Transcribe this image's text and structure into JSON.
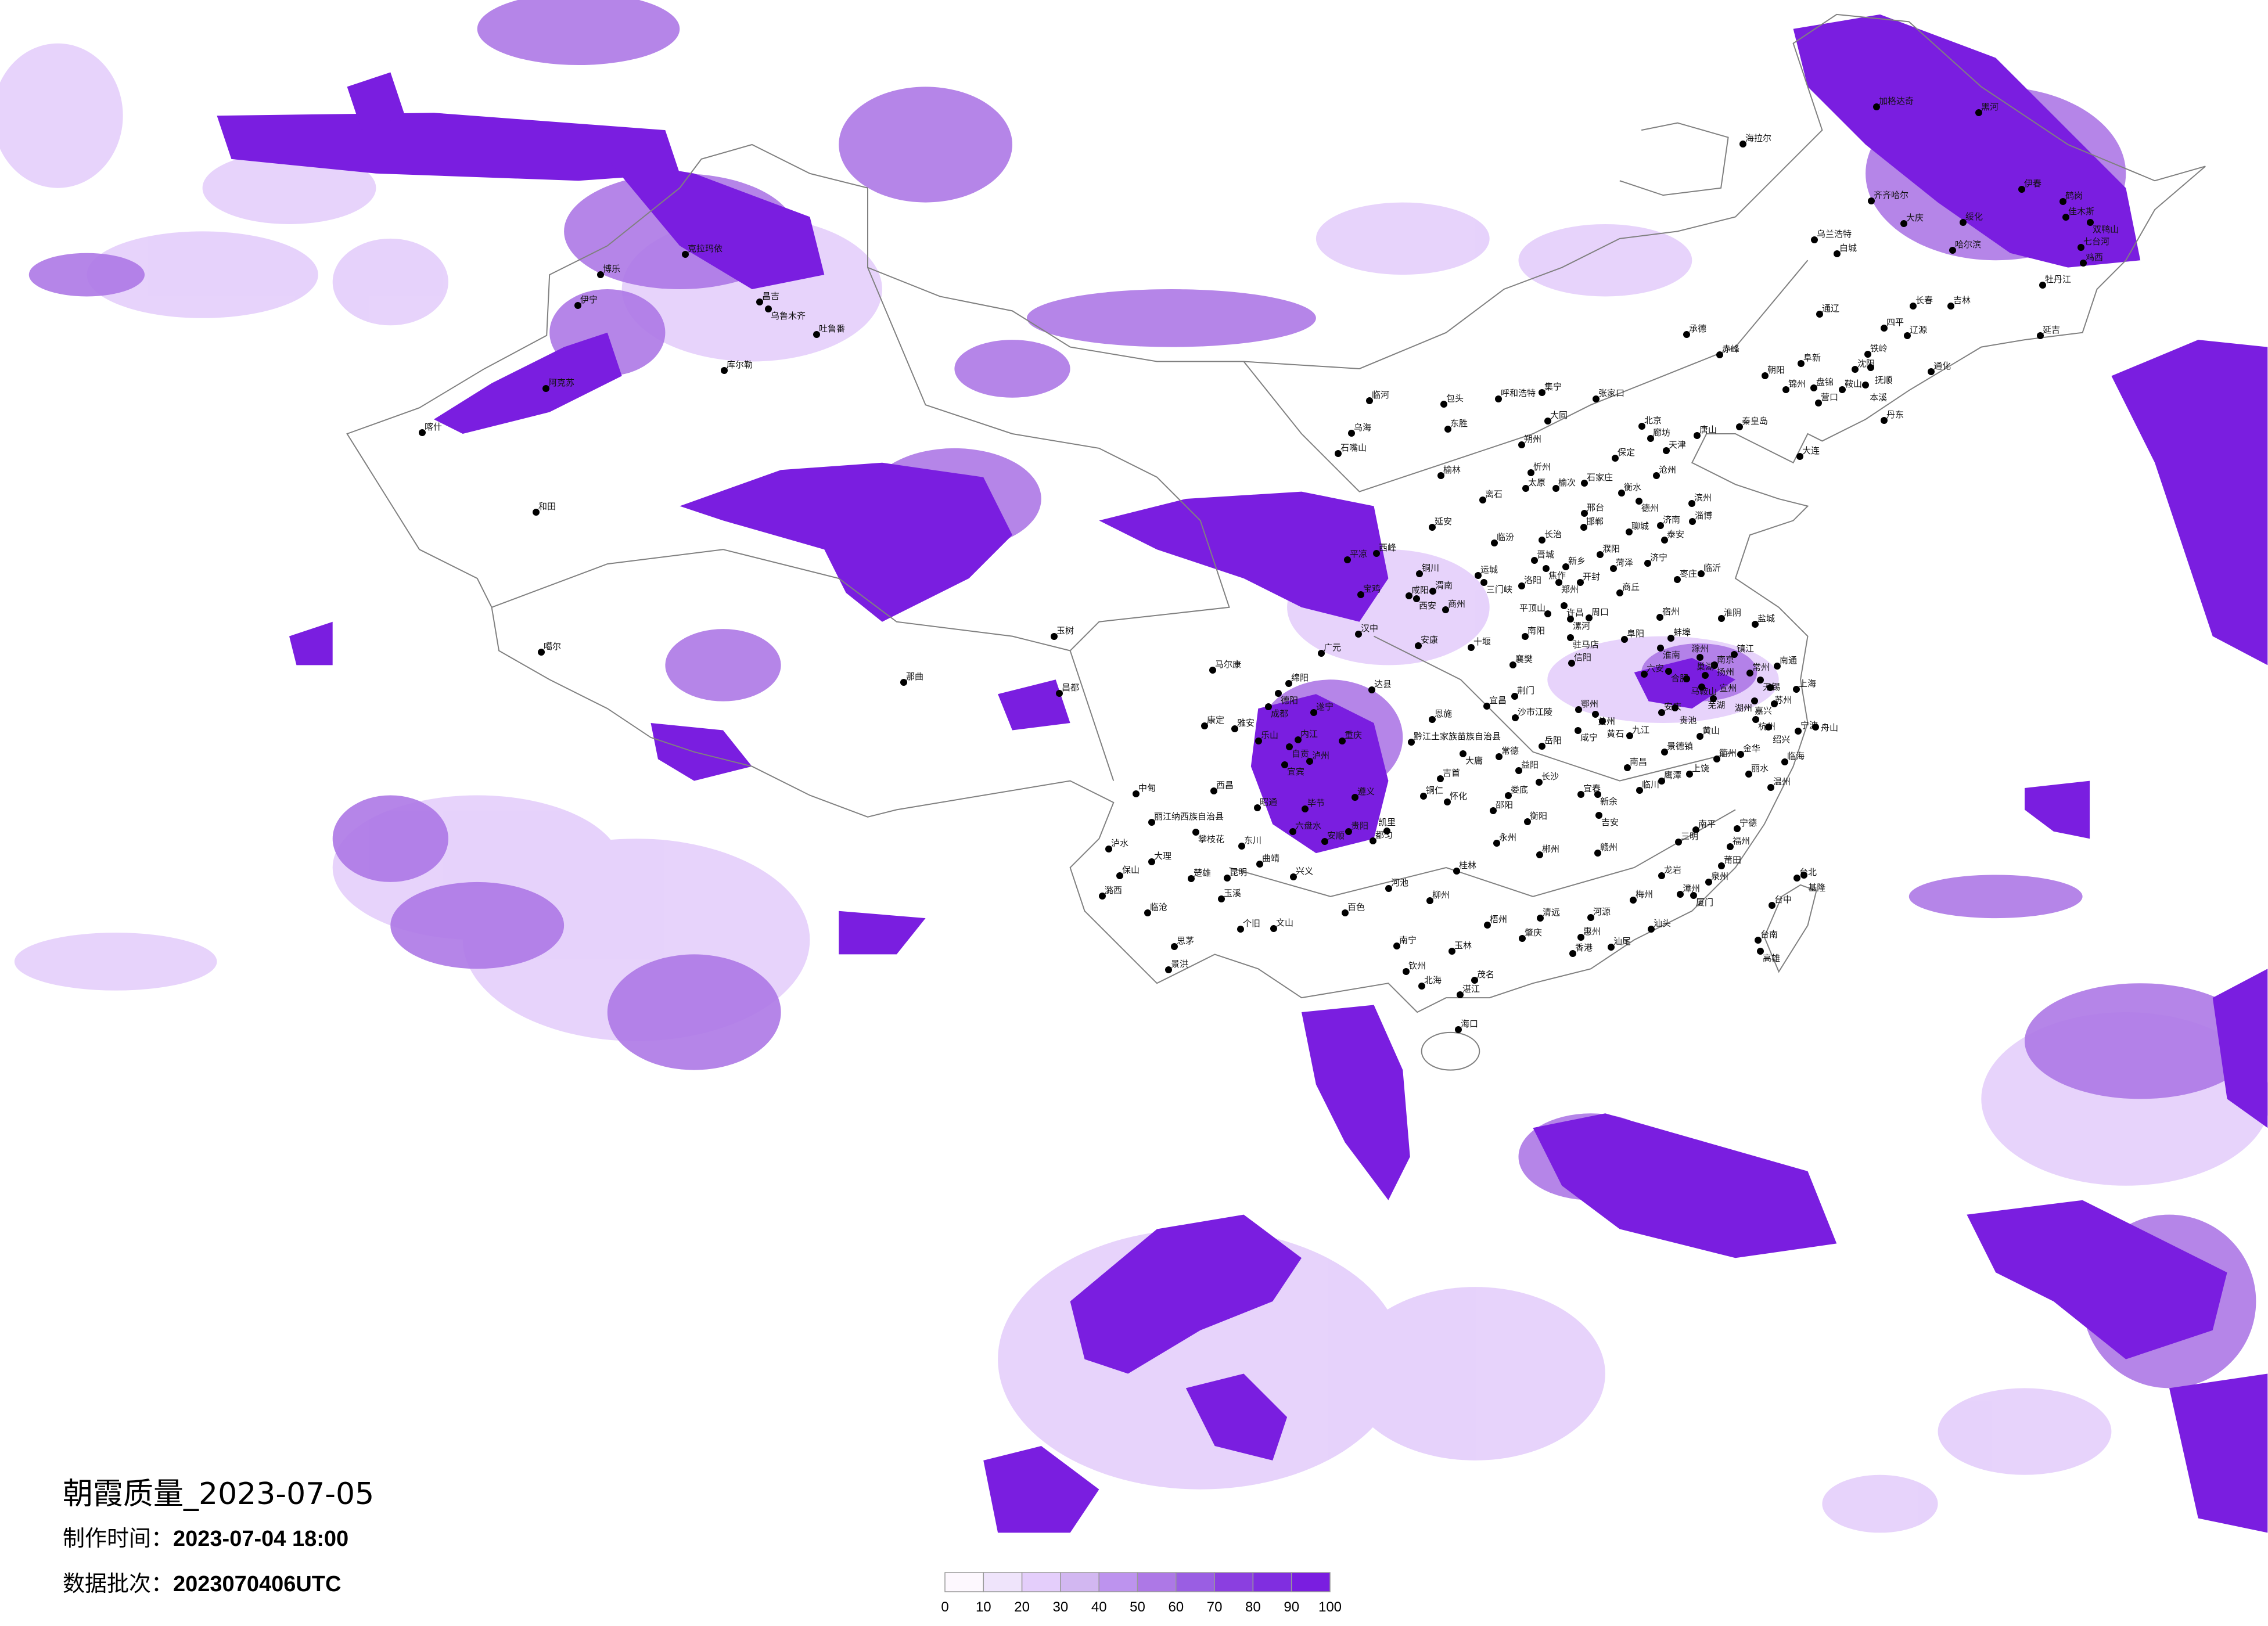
{
  "title": {
    "text": "朝霞质量_2023-07-05"
  },
  "made_time": {
    "label": "制作时间：",
    "value": "2023-07-04 18:00"
  },
  "data_batch": {
    "label": "数据批次：",
    "value": "2023070406UTC"
  },
  "legend": {
    "ticks": [
      "0",
      "10",
      "20",
      "30",
      "40",
      "50",
      "60",
      "70",
      "80",
      "90",
      "100"
    ],
    "colors": [
      "#fdf8fe",
      "#efe4fb",
      "#e4cefb",
      "#d2b7f1",
      "#bd93ee",
      "#ad78e6",
      "#9a5ee3",
      "#8b3fe0",
      "#802ee0",
      "#7a1ee0"
    ]
  },
  "colors": {
    "border": "#808080",
    "city_dot": "#000000",
    "background": "#ffffff"
  },
  "cities": [
    "海拉尔",
    "加格达奇",
    "黑河",
    "齐齐哈尔",
    "伊春",
    "鹤岗",
    "佳木斯",
    "双鸭山",
    "绥化",
    "大庆",
    "乌兰浩特",
    "白城",
    "哈尔滨",
    "七台河",
    "鸡西",
    "牡丹江",
    "长春",
    "吉林",
    "通辽",
    "四平",
    "辽源",
    "延吉",
    "赤峰",
    "阜新",
    "铁岭",
    "沈阳",
    "抚顺",
    "朝阳",
    "锦州",
    "盘锦",
    "鞍山",
    "本溪",
    "营口",
    "丹东",
    "大连",
    "秦皇岛",
    "唐山",
    "承德",
    "通化",
    "克拉玛依",
    "博乐",
    "伊宁",
    "昌吉",
    "乌鲁木齐",
    "吐鲁番",
    "库尔勒",
    "阿克苏",
    "喀什",
    "和田",
    "噶尔",
    "那曲",
    "临河",
    "包头",
    "呼和浩特",
    "集宁",
    "张家口",
    "乌海",
    "东胜",
    "大同",
    "北京",
    "廊坊",
    "天津",
    "朔州",
    "保定",
    "石嘴山",
    "榆林",
    "忻州",
    "沧州",
    "太原",
    "榆次",
    "石家庄",
    "离石",
    "衡水",
    "德州",
    "滨州",
    "邢台",
    "邯郸",
    "延安",
    "济南",
    "淄博",
    "聊城",
    "泰安",
    "临汾",
    "长治",
    "平凉",
    "西峰",
    "濮阳",
    "晋城",
    "新乡",
    "焦作",
    "菏泽",
    "济宁",
    "临沂",
    "铜川",
    "运城",
    "三门峡",
    "洛阳",
    "郑州",
    "开封",
    "枣庄",
    "宝鸡",
    "咸阳",
    "渭南",
    "西安",
    "商丘",
    "商州",
    "许昌",
    "宿州",
    "平顶山",
    "漯河",
    "周口",
    "淮阴",
    "汉中",
    "南阳",
    "驻马店",
    "阜阳",
    "蚌埠",
    "安康",
    "十堰",
    "淮南",
    "信阳",
    "襄樊",
    "合肥",
    "六安",
    "南京",
    "达县",
    "玉树",
    "马尔康",
    "绵阳",
    "德阳",
    "成都",
    "康定",
    "雅安",
    "乐山",
    "内江",
    "自贡",
    "遂宁",
    "重庆",
    "宜宾",
    "泸州",
    "西昌",
    "中甸",
    "昭通",
    "毕节",
    "遵义",
    "丽江纳西族自治县",
    "攀枝花",
    "六盘水",
    "贵阳",
    "安顺",
    "都匀",
    "凯里",
    "泸水",
    "东川",
    "大理",
    "曲靖",
    "保山",
    "楚雄",
    "昆明",
    "兴义",
    "潞西",
    "玉溪",
    "临沧",
    "个旧",
    "文山",
    "思茅",
    "景洪",
    "百色",
    "河池",
    "柳州",
    "桂林",
    "南宁",
    "玉林",
    "钦州",
    "北海",
    "湛江",
    "茂名",
    "海口",
    "梧州",
    "恩施",
    "宜昌",
    "荆门",
    "沙市江陵",
    "黔江土家族苗族自治县",
    "大庸",
    "常德",
    "岳阳",
    "益阳",
    "吉首",
    "铜仁",
    "怀化",
    "长沙",
    "娄底",
    "邵阳",
    "衡阳",
    "永州",
    "郴州",
    "清远",
    "肇庆",
    "广元",
    "昌都",
    "盐城",
    "滁州",
    "镇江",
    "扬州",
    "南通",
    "常州",
    "无锡",
    "苏州",
    "上海",
    "巢湖",
    "马鞍山",
    "芜湖",
    "宣州",
    "湖州",
    "嘉兴",
    "杭州",
    "绍兴",
    "宁波",
    "舟山",
    "安庆",
    "贵池",
    "鄂州",
    "黄州",
    "黄石",
    "咸宁",
    "九江",
    "黄山",
    "景德镇",
    "衢州",
    "金华",
    "南昌",
    "鹰潭",
    "上饶",
    "丽水",
    "临海",
    "临川",
    "宜春",
    "新余",
    "吉安",
    "温州",
    "南平",
    "宁德",
    "三明",
    "福州",
    "赣州",
    "莆田",
    "龙岩",
    "泉州",
    "漳州",
    "厦门",
    "梅州",
    "河源",
    "汕头",
    "惠州",
    "汕尾",
    "香港",
    "台北",
    "基隆",
    "台中",
    "台南",
    "高雄"
  ]
}
